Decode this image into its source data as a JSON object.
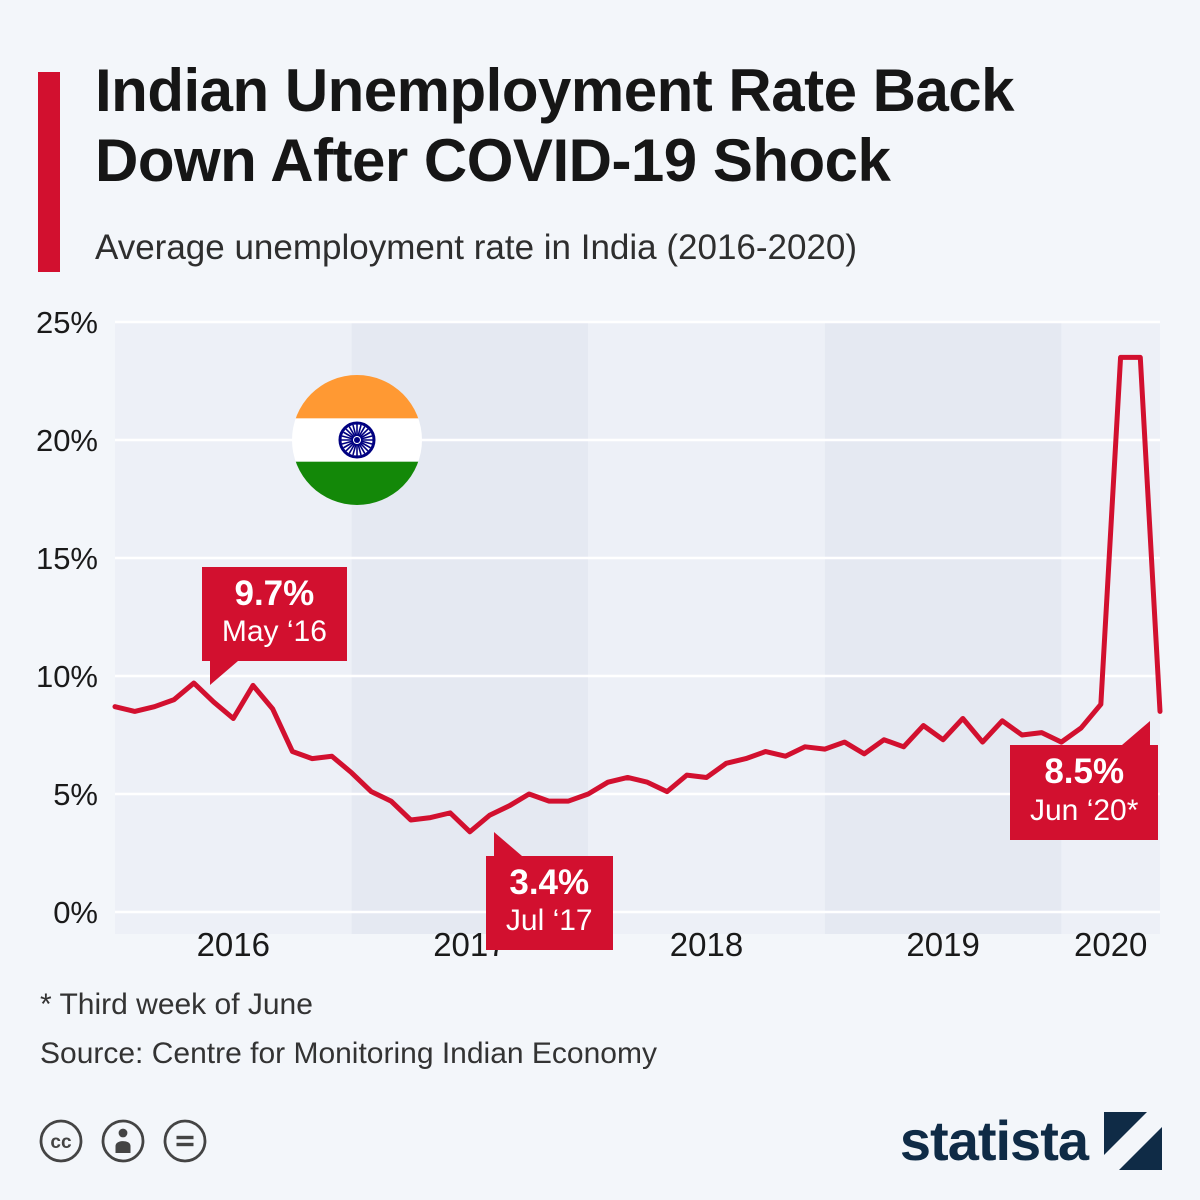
{
  "colors": {
    "page_bg": "#f3f6fa",
    "accent_red": "#d2102f",
    "band_light": "#edf0f7",
    "band_dark": "#e5e9f2",
    "gridline": "#ffffff",
    "title_text": "#161616",
    "body_text": "#333333",
    "logo_navy": "#0f2b46",
    "flag_saffron": "#ff9933",
    "flag_white": "#ffffff",
    "flag_green": "#138808",
    "flag_navy": "#000080"
  },
  "header": {
    "title_line1": "Indian Unemployment Rate Back",
    "title_line2": "Down After COVID-19 Shock",
    "subtitle": "Average unemployment rate in India (2016-2020)"
  },
  "chart_data": {
    "type": "line",
    "title": "Average unemployment rate in India (2016-2020)",
    "unit": "percent",
    "ylim": [
      0,
      25
    ],
    "ytick_values": [
      0,
      5,
      10,
      15,
      20,
      25
    ],
    "ytick_labels": [
      "0%",
      "5%",
      "10%",
      "15%",
      "20%",
      "25%"
    ],
    "x_start": "Jan 2016",
    "x_end": "Jun 2020",
    "grid": "horizontal",
    "legend": false,
    "years": [
      {
        "label": "2016",
        "months": 12
      },
      {
        "label": "2017",
        "months": 12
      },
      {
        "label": "2018",
        "months": 12
      },
      {
        "label": "2019",
        "months": 12
      },
      {
        "label": "2020",
        "months": 6
      }
    ],
    "series": [
      {
        "name": "Average unemployment rate in India",
        "values": [
          8.7,
          8.5,
          8.7,
          9.0,
          9.7,
          8.9,
          8.2,
          9.6,
          8.6,
          6.8,
          6.5,
          6.6,
          5.9,
          5.1,
          4.7,
          3.9,
          4.0,
          4.2,
          3.4,
          4.1,
          4.5,
          5.0,
          4.7,
          4.7,
          5.0,
          5.5,
          5.7,
          5.5,
          5.1,
          5.8,
          5.7,
          6.3,
          6.5,
          6.8,
          6.6,
          7.0,
          6.9,
          7.2,
          6.7,
          7.3,
          7.0,
          7.9,
          7.3,
          8.2,
          7.2,
          8.1,
          7.5,
          7.6,
          7.2,
          7.8,
          8.8,
          23.5,
          23.5,
          8.5
        ]
      }
    ],
    "annotations": [
      {
        "value_label": "9.7%",
        "date_label": "May ‘16",
        "month_index": 4,
        "value": 9.7,
        "placement": "above"
      },
      {
        "value_label": "3.4%",
        "date_label": "Jul ‘17",
        "month_index": 18,
        "value": 3.4,
        "placement": "below"
      },
      {
        "value_label": "8.5%",
        "date_label": "Jun ‘20*",
        "month_index": 53,
        "value": 8.5,
        "placement": "below-left"
      }
    ]
  },
  "footer": {
    "footnote": "* Third week of June",
    "source": "Source: Centre for Monitoring Indian Economy"
  },
  "branding": {
    "wordmark": "statista",
    "license_icons": [
      "cc-icon",
      "attribution-icon",
      "equals-icon"
    ]
  }
}
